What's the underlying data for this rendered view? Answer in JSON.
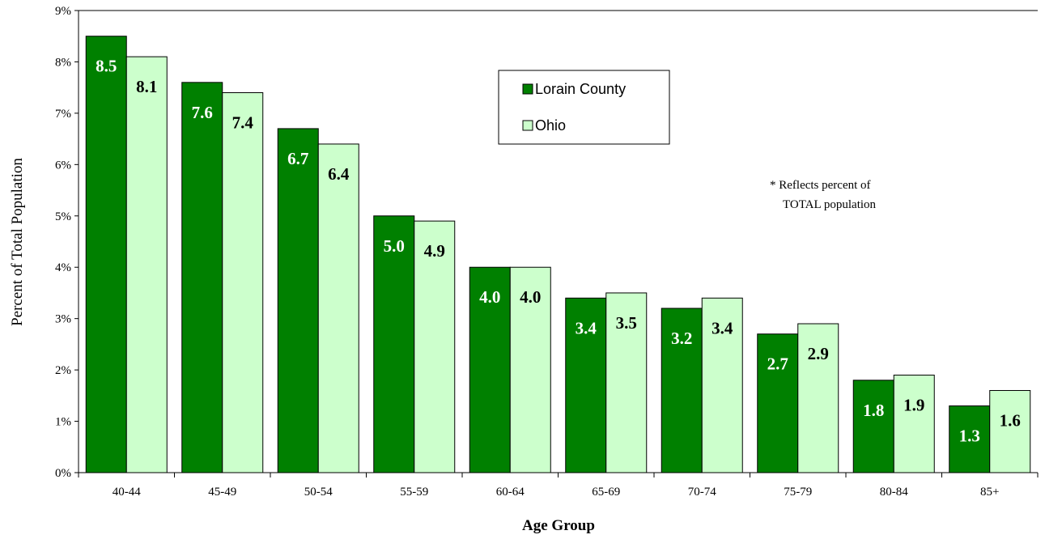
{
  "chart_data": {
    "type": "bar",
    "title": "",
    "xlabel": "Age Group",
    "ylabel": "Percent of Total Population",
    "ylim": [
      0,
      9
    ],
    "yticks": [
      "0%",
      "1%",
      "2%",
      "3%",
      "4%",
      "5%",
      "6%",
      "7%",
      "8%",
      "9%"
    ],
    "categories": [
      "40-44",
      "45-49",
      "50-54",
      "55-59",
      "60-64",
      "65-69",
      "70-74",
      "75-79",
      "80-84",
      "85+"
    ],
    "series": [
      {
        "name": "Lorain County",
        "color": "#008000",
        "label_color": "#ffffff",
        "values": [
          8.5,
          7.6,
          6.7,
          5.0,
          4.0,
          3.4,
          3.2,
          2.7,
          1.8,
          1.3
        ],
        "labels": [
          "8.5",
          "7.6",
          "6.7",
          "5.0",
          "4.0",
          "3.4",
          "3.2",
          "2.7",
          "1.8",
          "1.3"
        ]
      },
      {
        "name": "Ohio",
        "color": "#ccffcc",
        "label_color": "#000000",
        "values": [
          8.1,
          7.4,
          6.4,
          4.9,
          4.0,
          3.5,
          3.4,
          2.9,
          1.9,
          1.6
        ],
        "labels": [
          "8.1",
          "7.4",
          "6.4",
          "4.9",
          "4.0",
          "3.5",
          "3.4",
          "2.9",
          "1.9",
          "1.6"
        ]
      }
    ],
    "grid": false,
    "legend_position": "top-center",
    "annotation": [
      "* Reflects percent of",
      "TOTAL population"
    ]
  }
}
